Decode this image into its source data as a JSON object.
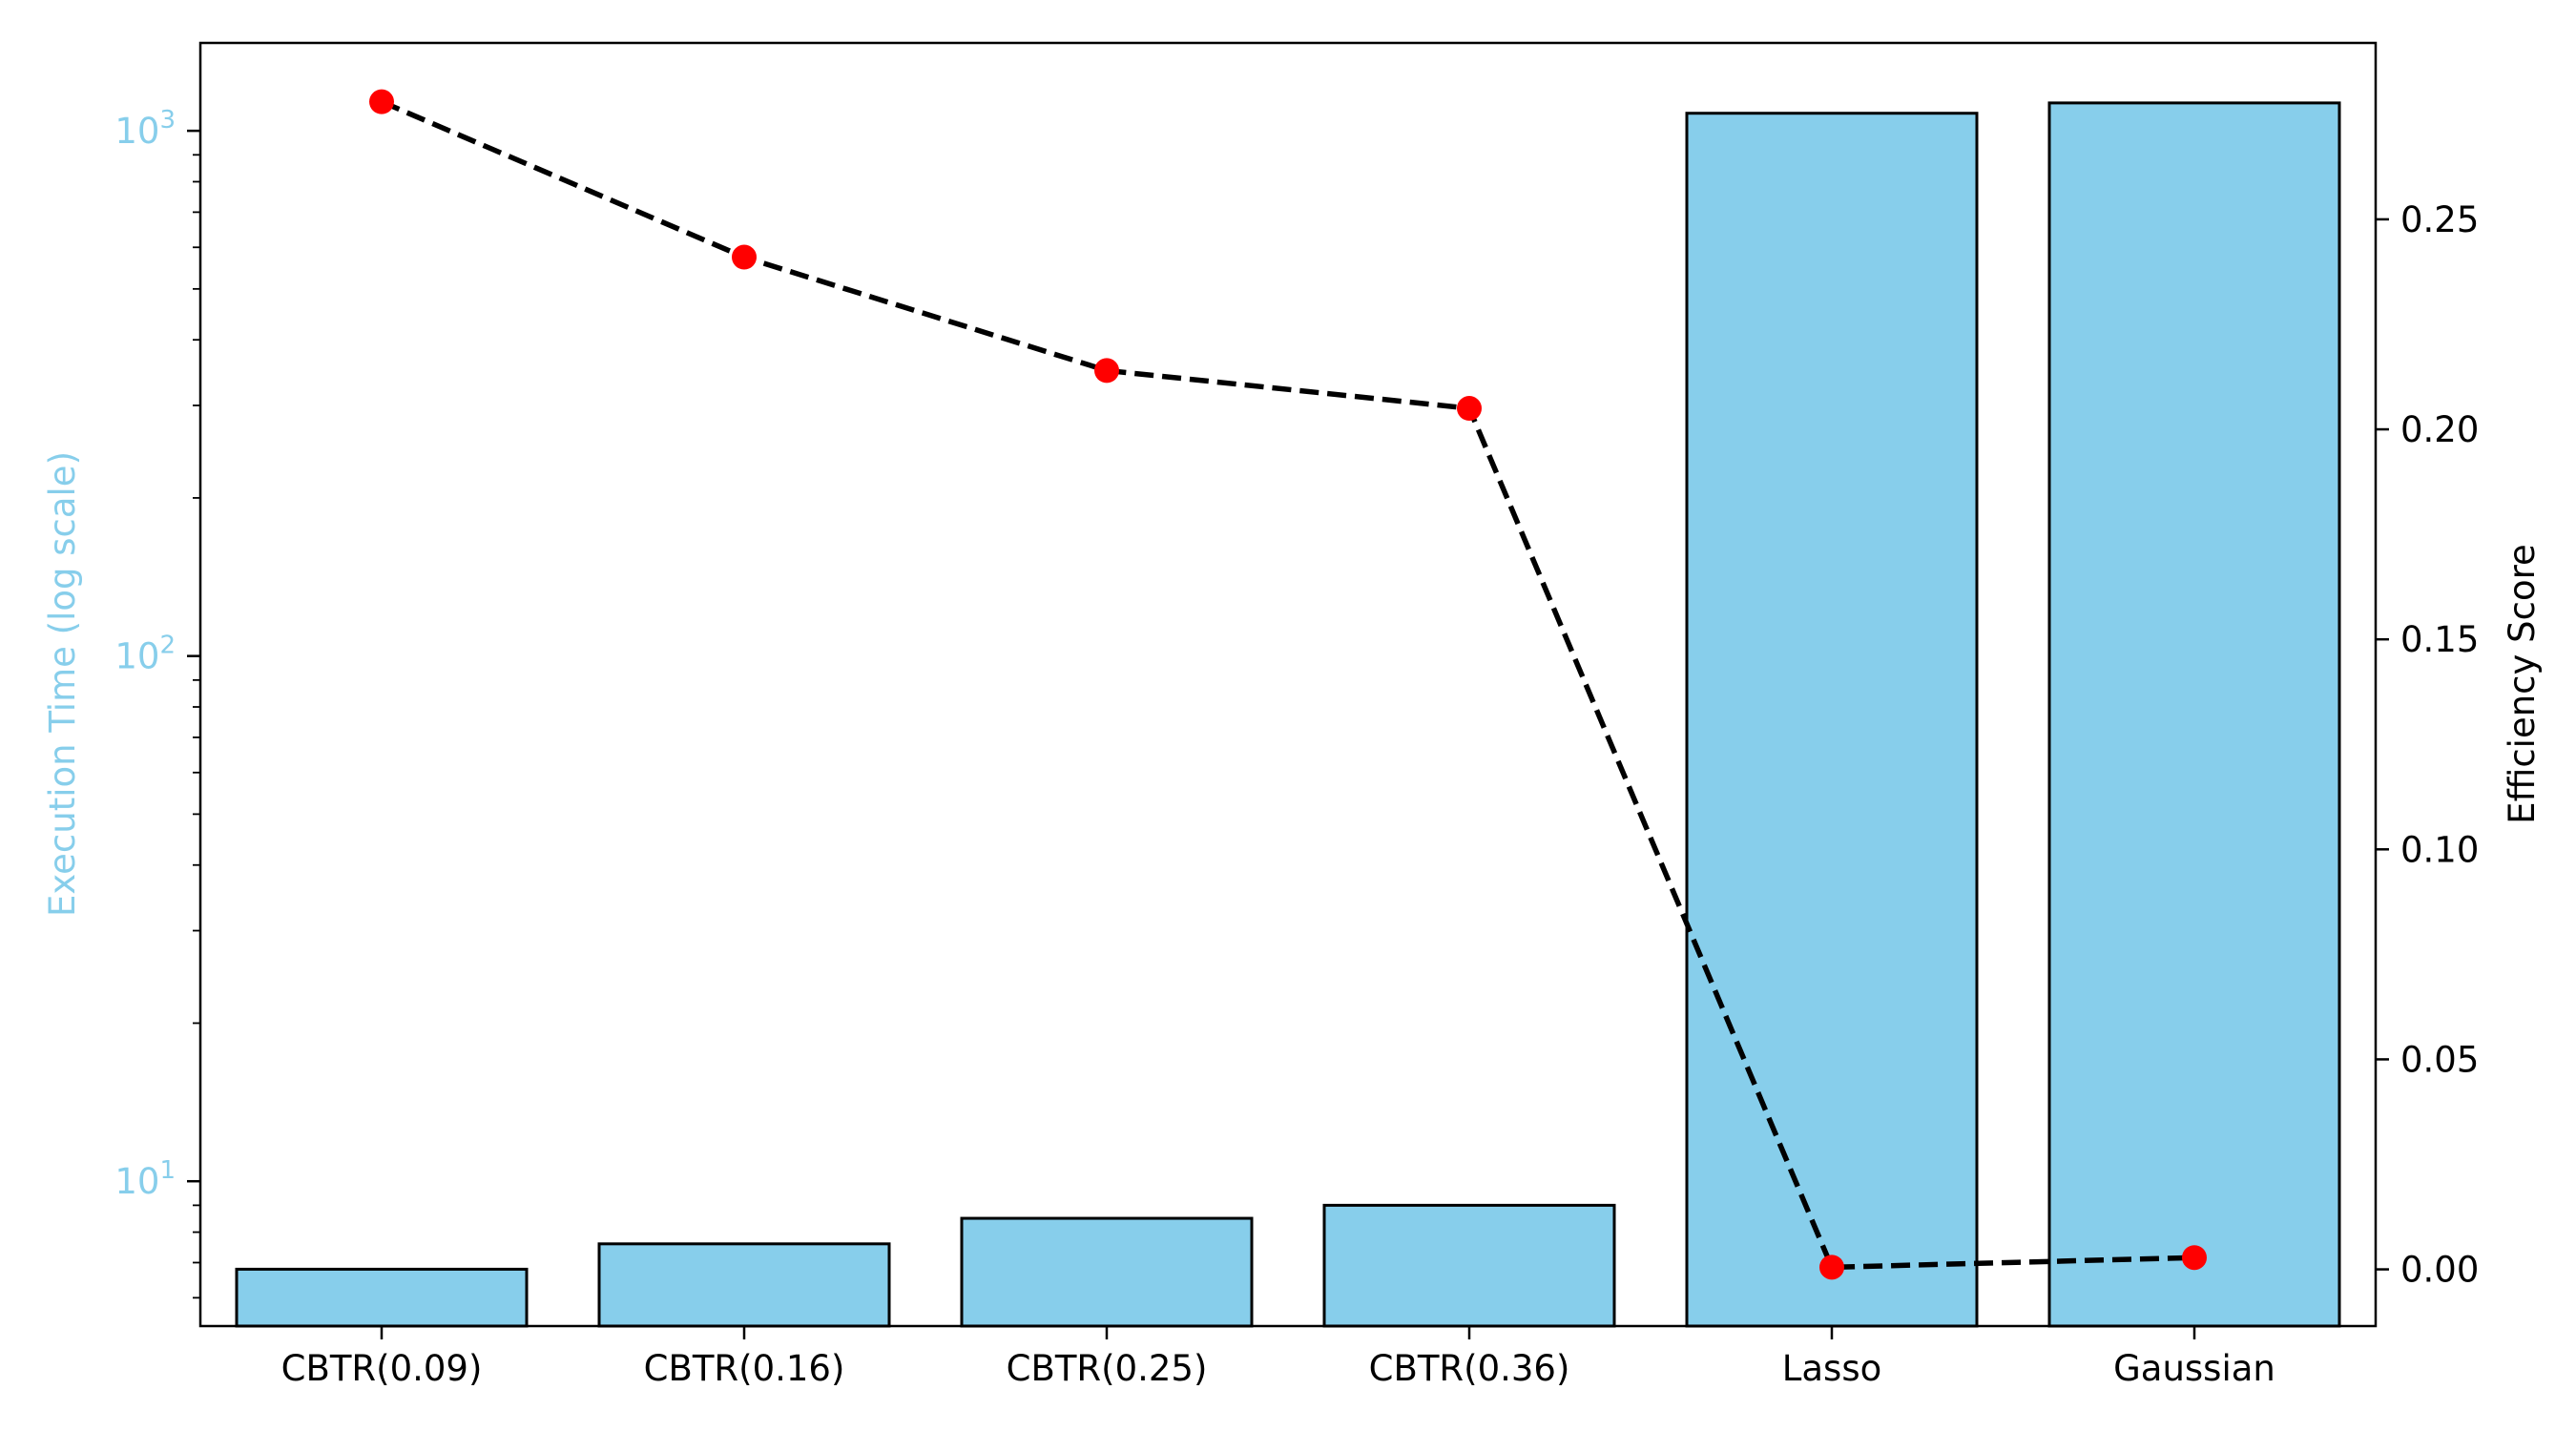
{
  "chart_data": {
    "type": "bar",
    "categories": [
      "CBTR(0.09)",
      "CBTR(0.16)",
      "CBTR(0.25)",
      "CBTR(0.36)",
      "Lasso",
      "Gaussian"
    ],
    "series": [
      {
        "name": "",
        "type": "bar",
        "axis": "left",
        "values": [
          6.8,
          7.6,
          8.5,
          9.0,
          1080,
          1130
        ],
        "color": "#87CEEB",
        "edgecolor": "#000000"
      },
      {
        "name": "",
        "type": "line",
        "axis": "right",
        "values": [
          0.278,
          0.241,
          0.214,
          0.205,
          0.0005,
          0.0028
        ],
        "line_color": "#000000",
        "line_style": "dashed",
        "marker_color": "#FF0000"
      }
    ],
    "left_axis": {
      "label": "Execution Time (log scale)",
      "scale": "log",
      "ylim": [
        5.3,
        1470
      ],
      "ticks": [
        {
          "value": 10,
          "base": "10",
          "exp": "1"
        },
        {
          "value": 100,
          "base": "10",
          "exp": "2"
        },
        {
          "value": 1000,
          "base": "10",
          "exp": "3"
        }
      ],
      "color": "#87CEEB"
    },
    "right_axis": {
      "label": "Efficiency Score",
      "scale": "linear",
      "ylim": [
        -0.0135,
        0.292
      ],
      "ticks": [
        "0.00",
        "0.05",
        "0.10",
        "0.15",
        "0.20",
        "0.25"
      ],
      "color": "#000000"
    },
    "grid": false,
    "legend": "none"
  }
}
